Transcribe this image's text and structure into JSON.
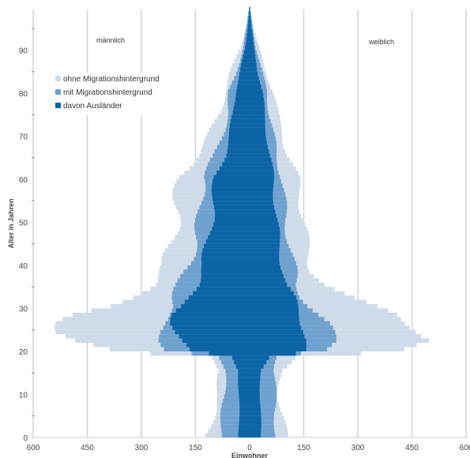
{
  "chart_data": {
    "type": "bar",
    "orientation": "horizontal-population-pyramid",
    "xlabel": "Einwohner",
    "ylabel": "Alter in Jahren",
    "annotations": {
      "left": "männlich",
      "right": "weiblich"
    },
    "x_ticks": [
      600,
      450,
      300,
      150,
      0,
      150,
      300,
      450,
      600
    ],
    "y_ticks": [
      0,
      10,
      20,
      30,
      40,
      50,
      60,
      70,
      80,
      90
    ],
    "xlim": [
      -600,
      600
    ],
    "ylim": [
      0,
      99
    ],
    "grid": "vertical",
    "legend_position": "top-left",
    "series": [
      {
        "name": "ohne Migrationshintergrund",
        "color": "#cfdbe9",
        "male_total": [
          {
            "age": 0,
            "value": 120
          },
          {
            "age": 5,
            "value": 100
          },
          {
            "age": 10,
            "value": 85
          },
          {
            "age": 15,
            "value": 85
          },
          {
            "age": 18,
            "value": 110
          },
          {
            "age": 19,
            "value": 300
          },
          {
            "age": 20,
            "value": 420
          },
          {
            "age": 22,
            "value": 500
          },
          {
            "age": 24,
            "value": 520
          },
          {
            "age": 26,
            "value": 500
          },
          {
            "age": 28,
            "value": 460
          },
          {
            "age": 30,
            "value": 380
          },
          {
            "age": 32,
            "value": 340
          },
          {
            "age": 35,
            "value": 280
          },
          {
            "age": 38,
            "value": 250
          },
          {
            "age": 40,
            "value": 230
          },
          {
            "age": 45,
            "value": 215
          },
          {
            "age": 50,
            "value": 205
          },
          {
            "age": 55,
            "value": 200
          },
          {
            "age": 60,
            "value": 195
          },
          {
            "age": 65,
            "value": 150
          },
          {
            "age": 70,
            "value": 110
          },
          {
            "age": 75,
            "value": 80
          },
          {
            "age": 80,
            "value": 70
          },
          {
            "age": 85,
            "value": 50
          },
          {
            "age": 90,
            "value": 25
          },
          {
            "age": 95,
            "value": 10
          },
          {
            "age": 99,
            "value": 2
          }
        ],
        "female_total": [
          {
            "age": 0,
            "value": 100
          },
          {
            "age": 5,
            "value": 90
          },
          {
            "age": 10,
            "value": 80
          },
          {
            "age": 15,
            "value": 85
          },
          {
            "age": 18,
            "value": 120
          },
          {
            "age": 19,
            "value": 300
          },
          {
            "age": 20,
            "value": 430
          },
          {
            "age": 22,
            "value": 530
          },
          {
            "age": 24,
            "value": 500
          },
          {
            "age": 26,
            "value": 450
          },
          {
            "age": 28,
            "value": 400
          },
          {
            "age": 30,
            "value": 330
          },
          {
            "age": 32,
            "value": 270
          },
          {
            "age": 35,
            "value": 210
          },
          {
            "age": 38,
            "value": 180
          },
          {
            "age": 40,
            "value": 170
          },
          {
            "age": 45,
            "value": 155
          },
          {
            "age": 50,
            "value": 150
          },
          {
            "age": 55,
            "value": 145
          },
          {
            "age": 60,
            "value": 130
          },
          {
            "age": 65,
            "value": 105
          },
          {
            "age": 70,
            "value": 95
          },
          {
            "age": 75,
            "value": 75
          },
          {
            "age": 80,
            "value": 65
          },
          {
            "age": 85,
            "value": 45
          },
          {
            "age": 90,
            "value": 25
          },
          {
            "age": 95,
            "value": 10
          },
          {
            "age": 99,
            "value": 2
          }
        ]
      },
      {
        "name": "mit Migrationshintergrund",
        "color": "#6fa1cf",
        "male_total": [
          {
            "age": 0,
            "value": 80
          },
          {
            "age": 5,
            "value": 75
          },
          {
            "age": 10,
            "value": 70
          },
          {
            "age": 15,
            "value": 70
          },
          {
            "age": 18,
            "value": 80
          },
          {
            "age": 19,
            "value": 150
          },
          {
            "age": 20,
            "value": 220
          },
          {
            "age": 22,
            "value": 240
          },
          {
            "age": 24,
            "value": 250
          },
          {
            "age": 26,
            "value": 250
          },
          {
            "age": 28,
            "value": 240
          },
          {
            "age": 30,
            "value": 220
          },
          {
            "age": 32,
            "value": 210
          },
          {
            "age": 35,
            "value": 190
          },
          {
            "age": 38,
            "value": 180
          },
          {
            "age": 40,
            "value": 170
          },
          {
            "age": 45,
            "value": 150
          },
          {
            "age": 50,
            "value": 140
          },
          {
            "age": 55,
            "value": 135
          },
          {
            "age": 60,
            "value": 130
          },
          {
            "age": 65,
            "value": 95
          },
          {
            "age": 70,
            "value": 75
          },
          {
            "age": 75,
            "value": 60
          },
          {
            "age": 80,
            "value": 55
          },
          {
            "age": 85,
            "value": 35
          },
          {
            "age": 90,
            "value": 18
          },
          {
            "age": 95,
            "value": 8
          },
          {
            "age": 99,
            "value": 2
          }
        ],
        "female_total": [
          {
            "age": 0,
            "value": 75
          },
          {
            "age": 5,
            "value": 70
          },
          {
            "age": 10,
            "value": 70
          },
          {
            "age": 15,
            "value": 70
          },
          {
            "age": 18,
            "value": 80
          },
          {
            "age": 19,
            "value": 150
          },
          {
            "age": 20,
            "value": 220
          },
          {
            "age": 22,
            "value": 230
          },
          {
            "age": 24,
            "value": 220
          },
          {
            "age": 26,
            "value": 210
          },
          {
            "age": 28,
            "value": 190
          },
          {
            "age": 30,
            "value": 170
          },
          {
            "age": 32,
            "value": 150
          },
          {
            "age": 35,
            "value": 130
          },
          {
            "age": 38,
            "value": 125
          },
          {
            "age": 40,
            "value": 120
          },
          {
            "age": 45,
            "value": 110
          },
          {
            "age": 50,
            "value": 100
          },
          {
            "age": 55,
            "value": 95
          },
          {
            "age": 60,
            "value": 90
          },
          {
            "age": 65,
            "value": 75
          },
          {
            "age": 70,
            "value": 65
          },
          {
            "age": 75,
            "value": 55
          },
          {
            "age": 80,
            "value": 48
          },
          {
            "age": 85,
            "value": 32
          },
          {
            "age": 90,
            "value": 18
          },
          {
            "age": 95,
            "value": 8
          },
          {
            "age": 99,
            "value": 2
          }
        ]
      },
      {
        "name": "davon Ausländer",
        "color": "#0b64a6",
        "male_total": [
          {
            "age": 0,
            "value": 30
          },
          {
            "age": 5,
            "value": 30
          },
          {
            "age": 10,
            "value": 30
          },
          {
            "age": 15,
            "value": 30
          },
          {
            "age": 18,
            "value": 50
          },
          {
            "age": 19,
            "value": 120
          },
          {
            "age": 20,
            "value": 180
          },
          {
            "age": 22,
            "value": 200
          },
          {
            "age": 24,
            "value": 210
          },
          {
            "age": 26,
            "value": 210
          },
          {
            "age": 28,
            "value": 200
          },
          {
            "age": 30,
            "value": 180
          },
          {
            "age": 32,
            "value": 170
          },
          {
            "age": 35,
            "value": 150
          },
          {
            "age": 38,
            "value": 140
          },
          {
            "age": 40,
            "value": 130
          },
          {
            "age": 45,
            "value": 115
          },
          {
            "age": 50,
            "value": 105
          },
          {
            "age": 55,
            "value": 100
          },
          {
            "age": 60,
            "value": 95
          },
          {
            "age": 65,
            "value": 70
          },
          {
            "age": 70,
            "value": 55
          },
          {
            "age": 75,
            "value": 45
          },
          {
            "age": 80,
            "value": 40
          },
          {
            "age": 85,
            "value": 25
          },
          {
            "age": 90,
            "value": 12
          },
          {
            "age": 95,
            "value": 5
          },
          {
            "age": 99,
            "value": 1
          }
        ],
        "female_total": [
          {
            "age": 0,
            "value": 30
          },
          {
            "age": 5,
            "value": 30
          },
          {
            "age": 10,
            "value": 30
          },
          {
            "age": 15,
            "value": 30
          },
          {
            "age": 18,
            "value": 50
          },
          {
            "age": 19,
            "value": 120
          },
          {
            "age": 20,
            "value": 150
          },
          {
            "age": 22,
            "value": 160
          },
          {
            "age": 24,
            "value": 160
          },
          {
            "age": 26,
            "value": 150
          },
          {
            "age": 28,
            "value": 140
          },
          {
            "age": 30,
            "value": 130
          },
          {
            "age": 32,
            "value": 120
          },
          {
            "age": 35,
            "value": 100
          },
          {
            "age": 38,
            "value": 95
          },
          {
            "age": 40,
            "value": 90
          },
          {
            "age": 45,
            "value": 80
          },
          {
            "age": 50,
            "value": 75
          },
          {
            "age": 55,
            "value": 70
          },
          {
            "age": 60,
            "value": 65
          },
          {
            "age": 65,
            "value": 55
          },
          {
            "age": 70,
            "value": 48
          },
          {
            "age": 75,
            "value": 40
          },
          {
            "age": 80,
            "value": 35
          },
          {
            "age": 85,
            "value": 22
          },
          {
            "age": 90,
            "value": 12
          },
          {
            "age": 95,
            "value": 5
          },
          {
            "age": 99,
            "value": 1
          }
        ]
      }
    ]
  }
}
